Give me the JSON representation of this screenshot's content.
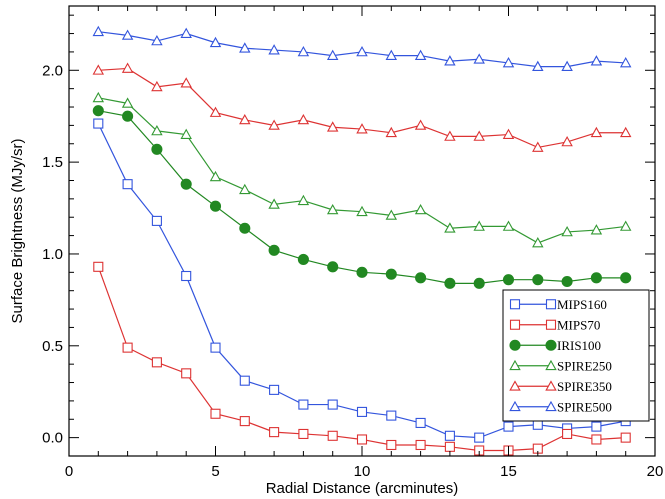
{
  "chart_data": {
    "type": "line",
    "title": "",
    "xlabel": "Radial Distance (arcminutes)",
    "ylabel": "Surface Brightness (MJy/sr)",
    "xlim": [
      0,
      20
    ],
    "ylim": [
      -0.1,
      2.35
    ],
    "x_ticks": [
      0,
      5,
      10,
      15,
      20
    ],
    "y_ticks": [
      0.0,
      0.5,
      1.0,
      1.5,
      2.0
    ],
    "x_tick_labels": [
      "0",
      "5",
      "10",
      "15",
      "20"
    ],
    "y_tick_labels": [
      "0.0",
      "0.5",
      "1.0",
      "1.5",
      "2.0"
    ],
    "x_minor_step": 1,
    "y_minor_step": 0.1,
    "grid": false,
    "legend_position": "bottom-right",
    "x": [
      1,
      2,
      3,
      4,
      5,
      6,
      7,
      8,
      9,
      10,
      11,
      12,
      13,
      14,
      15,
      16,
      17,
      18,
      19
    ],
    "series": [
      {
        "name": "MIPS160",
        "color": "#3355dd",
        "marker": "square",
        "filled": false,
        "values": [
          1.71,
          1.38,
          1.18,
          0.88,
          0.49,
          0.31,
          0.26,
          0.18,
          0.18,
          0.14,
          0.12,
          0.08,
          0.01,
          0.0,
          0.06,
          0.07,
          0.05,
          0.06,
          0.09
        ]
      },
      {
        "name": "MIPS70",
        "color": "#dd3333",
        "marker": "square",
        "filled": false,
        "values": [
          0.93,
          0.49,
          0.41,
          0.35,
          0.13,
          0.09,
          0.03,
          0.02,
          0.01,
          -0.01,
          -0.04,
          -0.04,
          -0.05,
          -0.07,
          -0.07,
          -0.06,
          0.02,
          -0.01,
          0.0
        ]
      },
      {
        "name": "IRIS100",
        "color": "#228822",
        "marker": "circle",
        "filled": true,
        "values": [
          1.78,
          1.75,
          1.57,
          1.38,
          1.26,
          1.14,
          1.02,
          0.97,
          0.93,
          0.9,
          0.89,
          0.87,
          0.84,
          0.84,
          0.86,
          0.86,
          0.85,
          0.87,
          0.87
        ]
      },
      {
        "name": "SPIRE250",
        "color": "#339933",
        "marker": "triangle",
        "filled": false,
        "values": [
          1.85,
          1.82,
          1.67,
          1.65,
          1.42,
          1.35,
          1.27,
          1.29,
          1.24,
          1.23,
          1.21,
          1.24,
          1.14,
          1.15,
          1.15,
          1.06,
          1.12,
          1.13,
          1.15
        ]
      },
      {
        "name": "SPIRE350",
        "color": "#dd3333",
        "marker": "triangle",
        "filled": false,
        "values": [
          2.0,
          2.01,
          1.91,
          1.93,
          1.77,
          1.73,
          1.7,
          1.73,
          1.69,
          1.68,
          1.66,
          1.7,
          1.64,
          1.64,
          1.65,
          1.58,
          1.61,
          1.66,
          1.66
        ]
      },
      {
        "name": "SPIRE500",
        "color": "#3355dd",
        "marker": "triangle",
        "filled": false,
        "values": [
          2.21,
          2.19,
          2.16,
          2.2,
          2.15,
          2.12,
          2.11,
          2.1,
          2.08,
          2.1,
          2.08,
          2.08,
          2.05,
          2.06,
          2.04,
          2.02,
          2.02,
          2.05,
          2.04
        ]
      }
    ]
  }
}
